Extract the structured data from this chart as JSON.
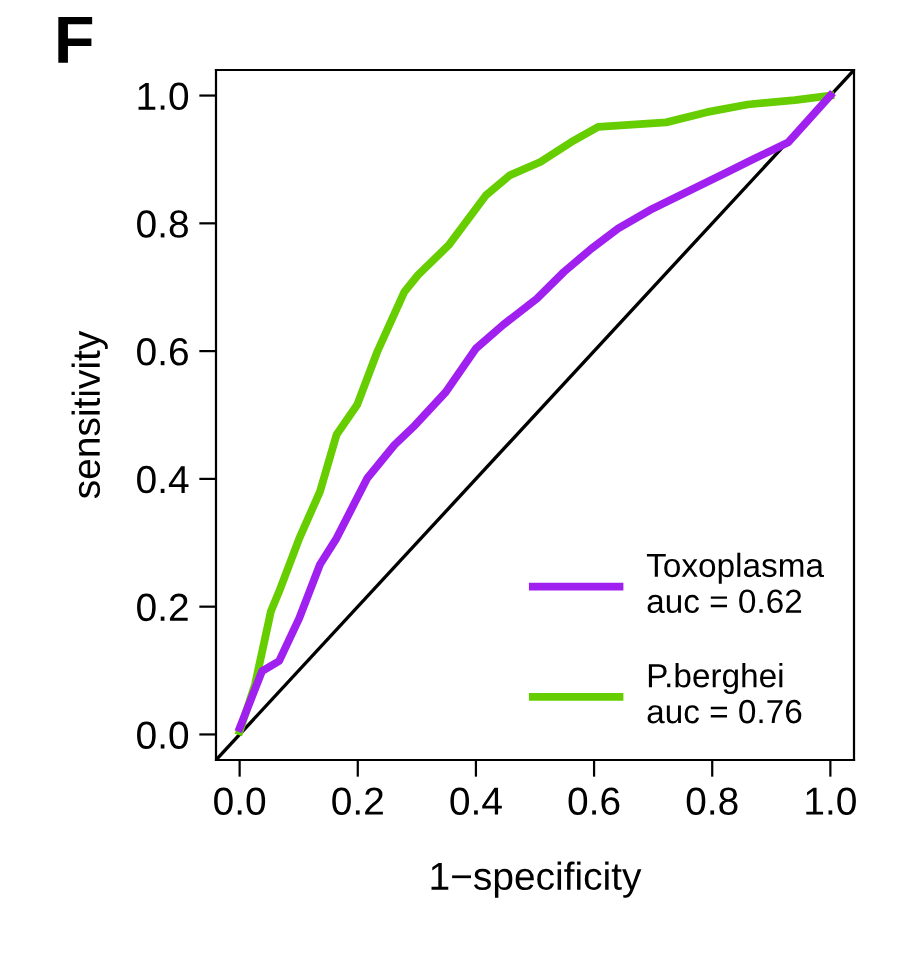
{
  "chart_data": {
    "type": "line",
    "xlabel": "1−specificity",
    "ylabel": "sensitivity",
    "annotations": [
      "F"
    ],
    "xlim": [
      -0.04,
      1.04
    ],
    "ylim": [
      -0.04,
      1.04
    ],
    "xticks": [
      {
        "value": 0,
        "label": "0.0"
      },
      {
        "value": 0.2,
        "label": "0.2"
      },
      {
        "value": 0.4,
        "label": "0.4"
      },
      {
        "value": 0.6,
        "label": "0.6"
      },
      {
        "value": 0.8,
        "label": "0.8"
      },
      {
        "value": 1,
        "label": "1.0"
      }
    ],
    "yticks": [
      {
        "value": 0,
        "label": "0.0"
      },
      {
        "value": 0.2,
        "label": "0.2"
      },
      {
        "value": 0.4,
        "label": "0.4"
      },
      {
        "value": 0.6,
        "label": "0.6"
      },
      {
        "value": 0.8,
        "label": "0.8"
      },
      {
        "value": 1,
        "label": "1.0"
      }
    ],
    "grid": false,
    "legend": "bottom right",
    "marker": "none",
    "series": [
      {
        "color": "#000000",
        "x": [
          -0.04,
          1.04
        ],
        "values": [
          -0.04,
          1.04
        ]
      },
      {
        "name": "P.berghei\nauc = 0.76",
        "color": "#66cd00",
        "x": [
          0,
          0.026,
          0.053,
          0.067,
          0.101,
          0.136,
          0.164,
          0.199,
          0.233,
          0.279,
          0.302,
          0.354,
          0.417,
          0.457,
          0.509,
          0.561,
          0.607,
          0.722,
          0.791,
          0.86,
          0.94,
          1.0
        ],
        "values": [
          0.005,
          0.078,
          0.193,
          0.224,
          0.307,
          0.38,
          0.469,
          0.516,
          0.599,
          0.693,
          0.719,
          0.766,
          0.844,
          0.875,
          0.896,
          0.927,
          0.951,
          0.958,
          0.974,
          0.986,
          0.993,
          1.0
        ]
      },
      {
        "name": "Toxoplasma\nauc = 0.62",
        "color": "#a020f0",
        "x": [
          0,
          0.038,
          0.067,
          0.101,
          0.136,
          0.164,
          0.216,
          0.262,
          0.297,
          0.349,
          0.4,
          0.446,
          0.503,
          0.549,
          0.595,
          0.641,
          0.699,
          0.768,
          0.825,
          0.871,
          0.929,
          1.0
        ],
        "values": [
          0.01,
          0.099,
          0.115,
          0.182,
          0.266,
          0.307,
          0.401,
          0.453,
          0.484,
          0.536,
          0.604,
          0.641,
          0.682,
          0.724,
          0.76,
          0.792,
          0.823,
          0.854,
          0.88,
          0.901,
          0.927,
          1.0
        ]
      }
    ]
  }
}
